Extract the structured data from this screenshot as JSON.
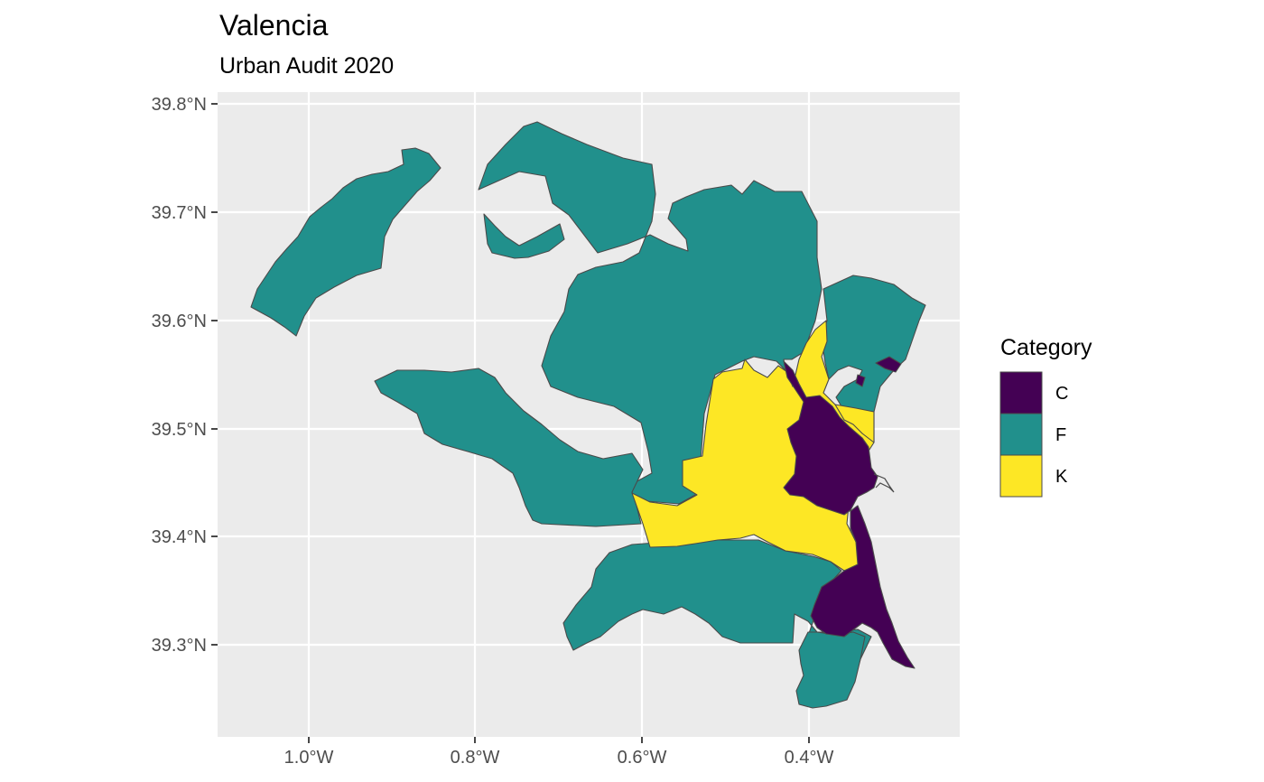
{
  "title": "Valencia",
  "subtitle": "Urban Audit 2020",
  "axes": {
    "y_ticks": [
      "39.8°N",
      "39.7°N",
      "39.6°N",
      "39.5°N",
      "39.4°N",
      "39.3°N"
    ],
    "x_ticks": [
      "1.0°W",
      "0.8°W",
      "0.6°W",
      "0.4°W"
    ]
  },
  "legend": {
    "title": "Category",
    "items": [
      {
        "label": "C",
        "color": "#440154"
      },
      {
        "label": "F",
        "color": "#21908C"
      },
      {
        "label": "K",
        "color": "#FDE725"
      }
    ]
  },
  "colors": {
    "panel_background": "#EBEBEB",
    "grid": "#FFFFFF",
    "outline": "#4A4A4A"
  }
}
